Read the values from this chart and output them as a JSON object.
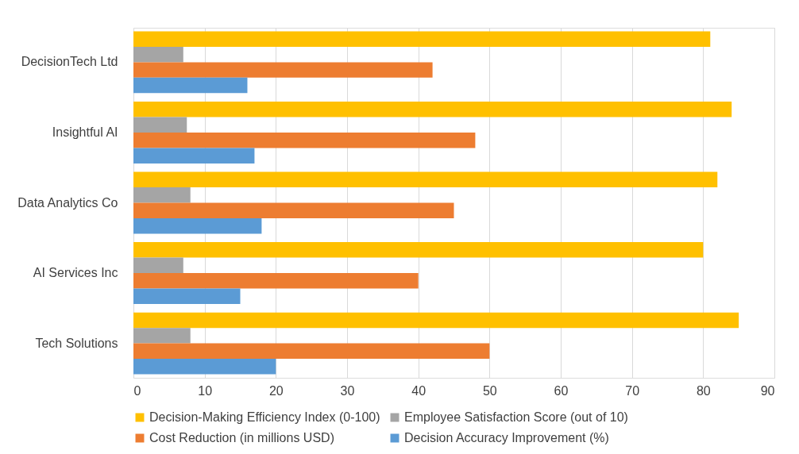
{
  "chart_data": {
    "type": "bar",
    "orientation": "horizontal",
    "categories": [
      "DecisionTech Ltd",
      "Insightful AI",
      "Data Analytics Co",
      "AI Services Inc",
      "Tech Solutions"
    ],
    "series": [
      {
        "name": "Decision-Making Efficiency Index (0-100)",
        "color": "#ffc000",
        "values": [
          81,
          84,
          82,
          80,
          85
        ]
      },
      {
        "name": "Employee Satisfaction Score (out of 10)",
        "color": "#a5a5a5",
        "values": [
          7,
          7.5,
          8,
          7,
          8
        ]
      },
      {
        "name": "Cost Reduction (in millions USD)",
        "color": "#ed7d31",
        "values": [
          42,
          48,
          45,
          40,
          50
        ]
      },
      {
        "name": "Decision Accuracy Improvement (%)",
        "color": "#5b9bd5",
        "values": [
          16,
          17,
          18,
          15,
          20
        ]
      }
    ],
    "xlim": [
      0,
      90
    ],
    "xticks": [
      0,
      10,
      20,
      30,
      40,
      50,
      60,
      70,
      80,
      90
    ],
    "grid": "x",
    "legend": "bottom"
  }
}
